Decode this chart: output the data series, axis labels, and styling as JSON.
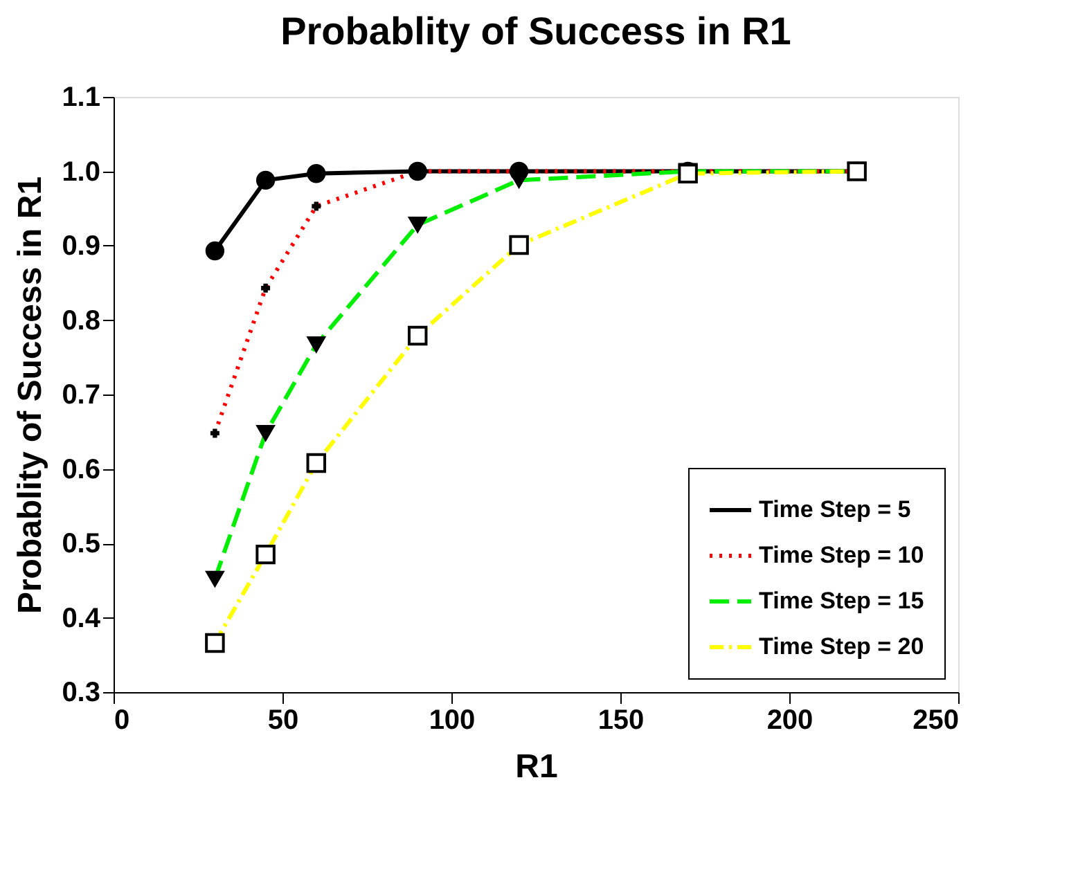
{
  "chart_data": {
    "type": "line",
    "title": "Probablity of Success in R1",
    "xlabel": "R1",
    "ylabel": "Probablity of Success in R1",
    "x": [
      30,
      45,
      60,
      90,
      120,
      170,
      220
    ],
    "series": [
      {
        "name": "Time Step = 5",
        "color": "#000000",
        "marker": "circle",
        "line_style": "solid",
        "values": [
          0.893,
          0.988,
          0.997,
          1.0,
          1.0,
          1.0,
          1.0
        ]
      },
      {
        "name": "Time Step = 10",
        "color": "#ff0000",
        "marker": "cross",
        "line_style": "dotted",
        "values": [
          0.648,
          0.843,
          0.953,
          1.0,
          1.0,
          1.0,
          1.0
        ]
      },
      {
        "name": "Time Step = 15",
        "color": "#00ee00",
        "marker": "triangle",
        "line_style": "dashed",
        "values": [
          0.452,
          0.648,
          0.767,
          0.928,
          0.988,
          1.0,
          1.0
        ]
      },
      {
        "name": "Time Step = 20",
        "color": "#ffff00",
        "marker": "square",
        "line_style": "dashdot",
        "values": [
          0.366,
          0.485,
          0.608,
          0.779,
          0.901,
          0.997,
          1.0
        ]
      }
    ],
    "xlim": [
      0,
      250
    ],
    "xticks": [
      0,
      50,
      100,
      150,
      200,
      250
    ],
    "ylim": [
      0.3,
      1.1
    ],
    "yticks": [
      0.3,
      0.4,
      0.5,
      0.6,
      0.7,
      0.8,
      0.9,
      {
        "value": 1.0,
        "label": "1.0"
      },
      1.1
    ],
    "grid": false,
    "legend": "bottom right"
  }
}
